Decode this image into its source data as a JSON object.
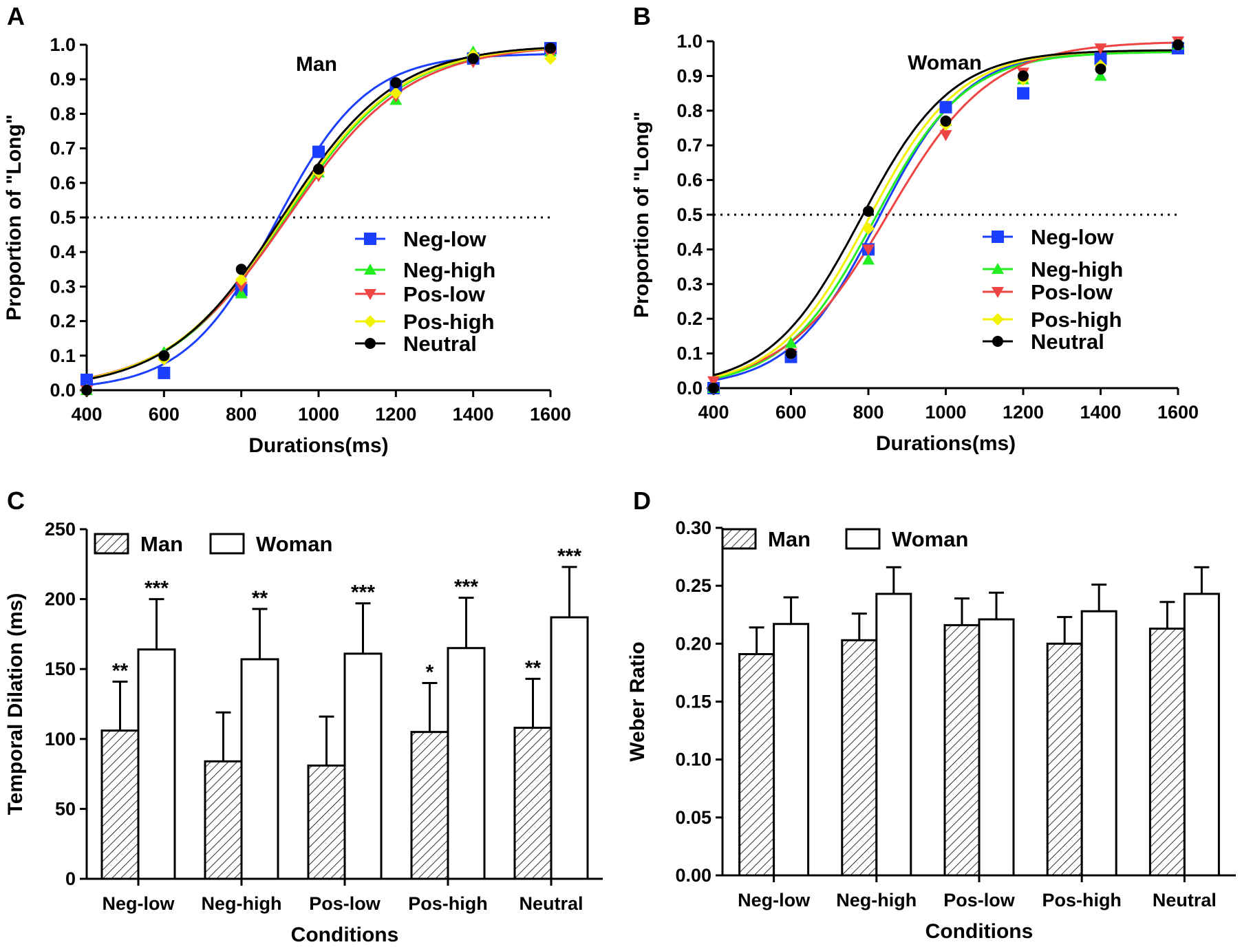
{
  "chart_data": [
    {
      "panel": "A",
      "type": "line",
      "title": "Man",
      "xlabel": "Durations(ms)",
      "ylabel": "Proportion of \"Long\"",
      "xlim": [
        400,
        1600
      ],
      "ylim": [
        0,
        1.0
      ],
      "xticks": [
        "400",
        "600",
        "800",
        "1000",
        "1200",
        "1400",
        "1600"
      ],
      "yticks": [
        "0.0",
        "0.1",
        "0.2",
        "0.3",
        "0.4",
        "0.5",
        "0.6",
        "0.7",
        "0.8",
        "0.9",
        "1.0"
      ],
      "reference_line": 0.5,
      "x": [
        400,
        600,
        800,
        1000,
        1200,
        1400,
        1600
      ],
      "series": [
        {
          "name": "Neg-low",
          "color": "#1c3fff",
          "marker": "square",
          "values": [
            0.03,
            0.05,
            0.29,
            0.69,
            0.88,
            0.96,
            0.99
          ],
          "fit": {
            "pse": 890,
            "slope": 0.0085,
            "floor": 0.0,
            "ceil": 0.975
          }
        },
        {
          "name": "Neg-high",
          "color": "#22ee22",
          "marker": "triangle-up",
          "values": [
            0.0,
            0.11,
            0.28,
            0.63,
            0.84,
            0.98,
            0.98
          ],
          "fit": {
            "pse": 915,
            "slope": 0.0066,
            "floor": 0.0,
            "ceil": 1.0
          }
        },
        {
          "name": "Pos-low",
          "color": "#ee4444",
          "marker": "triangle-down",
          "values": [
            0.0,
            0.09,
            0.3,
            0.62,
            0.85,
            0.95,
            0.97
          ],
          "fit": {
            "pse": 920,
            "slope": 0.0064,
            "floor": 0.0,
            "ceil": 1.0
          }
        },
        {
          "name": "Pos-high",
          "color": "#f2f200",
          "marker": "diamond",
          "values": [
            0.0,
            0.09,
            0.32,
            0.63,
            0.86,
            0.97,
            0.96
          ],
          "fit": {
            "pse": 910,
            "slope": 0.0066,
            "floor": 0.0,
            "ceil": 1.0
          }
        },
        {
          "name": "Neutral",
          "color": "#000000",
          "marker": "circle",
          "values": [
            0.0,
            0.1,
            0.35,
            0.64,
            0.89,
            0.96,
            0.99
          ],
          "fit": {
            "pse": 905,
            "slope": 0.0068,
            "floor": 0.0,
            "ceil": 1.0
          }
        }
      ]
    },
    {
      "panel": "B",
      "type": "line",
      "title": "Woman",
      "xlabel": "Durations(ms)",
      "ylabel": "Proportion of \"Long\"",
      "xlim": [
        400,
        1600
      ],
      "ylim": [
        0,
        1.0
      ],
      "xticks": [
        "400",
        "600",
        "800",
        "1000",
        "1200",
        "1400",
        "1600"
      ],
      "yticks": [
        "0.0",
        "0.1",
        "0.2",
        "0.3",
        "0.4",
        "0.5",
        "0.6",
        "0.7",
        "0.8",
        "0.9",
        "1.0"
      ],
      "reference_line": 0.5,
      "x": [
        400,
        600,
        800,
        1000,
        1200,
        1400,
        1600
      ],
      "series": [
        {
          "name": "Neg-low",
          "color": "#1c3fff",
          "marker": "square",
          "values": [
            0.0,
            0.09,
            0.4,
            0.81,
            0.85,
            0.95,
            0.98
          ],
          "fit": {
            "pse": 825,
            "slope": 0.0088,
            "floor": 0.0,
            "ceil": 0.975
          }
        },
        {
          "name": "Neg-high",
          "color": "#22ee22",
          "marker": "triangle-up",
          "values": [
            0.0,
            0.13,
            0.37,
            0.77,
            0.89,
            0.9,
            0.99
          ],
          "fit": {
            "pse": 815,
            "slope": 0.0085,
            "floor": 0.0,
            "ceil": 0.97
          }
        },
        {
          "name": "Pos-low",
          "color": "#ee4444",
          "marker": "triangle-down",
          "values": [
            0.02,
            0.1,
            0.4,
            0.73,
            0.91,
            0.98,
            1.0
          ],
          "fit": {
            "pse": 850,
            "slope": 0.0075,
            "floor": 0.0,
            "ceil": 1.0
          }
        },
        {
          "name": "Pos-high",
          "color": "#f2f200",
          "marker": "diamond",
          "values": [
            0.0,
            0.1,
            0.46,
            0.76,
            0.89,
            0.93,
            0.99
          ],
          "fit": {
            "pse": 800,
            "slope": 0.0085,
            "floor": 0.0,
            "ceil": 0.975
          }
        },
        {
          "name": "Neutral",
          "color": "#000000",
          "marker": "circle",
          "values": [
            0.0,
            0.1,
            0.51,
            0.77,
            0.9,
            0.92,
            0.99
          ],
          "fit": {
            "pse": 780,
            "slope": 0.0085,
            "floor": 0.0,
            "ceil": 0.975
          }
        }
      ]
    },
    {
      "panel": "C",
      "type": "bar",
      "xlabel": "Conditions",
      "ylabel": "Temporal Dilation (ms)",
      "ylim": [
        0,
        250
      ],
      "yticks": [
        "0",
        "50",
        "100",
        "150",
        "200",
        "250"
      ],
      "categories": [
        "Neg-low",
        "Neg-high",
        "Pos-low",
        "Pos-high",
        "Neutral"
      ],
      "series": [
        {
          "name": "Man",
          "pattern": "hatched",
          "values": [
            106,
            84,
            81,
            105,
            108
          ],
          "errors": [
            35,
            35,
            35,
            35,
            35
          ],
          "significance": [
            "**",
            "",
            "",
            "*",
            "**"
          ]
        },
        {
          "name": "Woman",
          "pattern": "open",
          "values": [
            164,
            157,
            161,
            165,
            187
          ],
          "errors": [
            36,
            36,
            36,
            36,
            36
          ],
          "significance": [
            "***",
            "**",
            "***",
            "***",
            "***"
          ]
        }
      ]
    },
    {
      "panel": "D",
      "type": "bar",
      "xlabel": "Conditions",
      "ylabel": "Weber Ratio",
      "ylim": [
        0,
        0.3
      ],
      "yticks": [
        "0.00",
        "0.05",
        "0.10",
        "0.15",
        "0.20",
        "0.25",
        "0.30"
      ],
      "categories": [
        "Neg-low",
        "Neg-high",
        "Pos-low",
        "Pos-high",
        "Neutral"
      ],
      "series": [
        {
          "name": "Man",
          "pattern": "hatched",
          "values": [
            0.191,
            0.203,
            0.216,
            0.2,
            0.213
          ],
          "errors": [
            0.023,
            0.023,
            0.023,
            0.023,
            0.023
          ]
        },
        {
          "name": "Woman",
          "pattern": "open",
          "values": [
            0.217,
            0.243,
            0.221,
            0.228,
            0.243
          ],
          "errors": [
            0.023,
            0.023,
            0.023,
            0.023,
            0.023
          ]
        }
      ]
    }
  ]
}
